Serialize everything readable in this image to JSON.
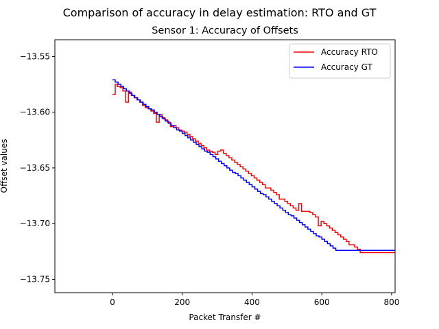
{
  "chart_data": {
    "type": "line",
    "title": "Comparison of accuracy in delay estimation: RTO and GT",
    "subtitle": "Sensor 1: Accuracy of Offsets",
    "xlabel": "Packet Transfer #",
    "ylabel": "Offset values",
    "xlim": [
      -165,
      810
    ],
    "ylim": [
      -13.762,
      -13.535
    ],
    "xticks": [
      0,
      200,
      400,
      600,
      800
    ],
    "yticks": [
      -13.55,
      -13.6,
      -13.65,
      -13.7,
      -13.75
    ],
    "ytick_labels": [
      "−13.55",
      "−13.60",
      "−13.65",
      "−13.70",
      "−13.75"
    ],
    "legend_position": "top-right",
    "grid": false,
    "series": [
      {
        "name": "Accuracy RTO",
        "color": "#ff0000",
        "step": true,
        "x": [
          0,
          8,
          14,
          22,
          30,
          38,
          46,
          54,
          62,
          70,
          78,
          86,
          94,
          102,
          110,
          118,
          126,
          134,
          142,
          150,
          158,
          166,
          174,
          182,
          190,
          198,
          206,
          214,
          222,
          230,
          238,
          246,
          254,
          262,
          270,
          278,
          286,
          294,
          302,
          310,
          318,
          326,
          334,
          342,
          350,
          358,
          366,
          374,
          382,
          390,
          398,
          406,
          414,
          422,
          430,
          438,
          446,
          454,
          462,
          470,
          478,
          486,
          494,
          502,
          510,
          518,
          526,
          534,
          542,
          550,
          558,
          566,
          574,
          582,
          590,
          598,
          606,
          614,
          622,
          630,
          638,
          646,
          654,
          662,
          670,
          678,
          686,
          694,
          702,
          710,
          718,
          726,
          734,
          742,
          750,
          758,
          766,
          774,
          782,
          790,
          798,
          806,
          810
        ],
        "y": [
          -13.584,
          -13.575,
          -13.577,
          -13.578,
          -13.581,
          -13.591,
          -13.582,
          -13.585,
          -13.587,
          -13.589,
          -13.591,
          -13.594,
          -13.596,
          -13.597,
          -13.599,
          -13.601,
          -13.609,
          -13.602,
          -13.605,
          -13.607,
          -13.609,
          -13.613,
          -13.612,
          -13.614,
          -13.616,
          -13.617,
          -13.618,
          -13.62,
          -13.622,
          -13.624,
          -13.626,
          -13.628,
          -13.63,
          -13.632,
          -13.634,
          -13.635,
          -13.636,
          -13.638,
          -13.635,
          -13.634,
          -13.637,
          -13.639,
          -13.641,
          -13.643,
          -13.645,
          -13.647,
          -13.649,
          -13.651,
          -13.653,
          -13.655,
          -13.657,
          -13.659,
          -13.661,
          -13.663,
          -13.665,
          -13.668,
          -13.668,
          -13.67,
          -13.672,
          -13.674,
          -13.678,
          -13.678,
          -13.68,
          -13.682,
          -13.684,
          -13.686,
          -13.688,
          -13.682,
          -13.689,
          -13.689,
          -13.689,
          -13.69,
          -13.692,
          -13.694,
          -13.702,
          -13.698,
          -13.7,
          -13.702,
          -13.704,
          -13.706,
          -13.708,
          -13.71,
          -13.712,
          -13.714,
          -13.716,
          -13.719,
          -13.719,
          -13.721,
          -13.723,
          -13.726,
          -13.726,
          -13.726,
          -13.726,
          -13.726,
          -13.726,
          -13.726,
          -13.726,
          -13.726,
          -13.726,
          -13.726,
          -13.726,
          -13.726,
          -13.726
        ]
      },
      {
        "name": "Accuracy GT",
        "color": "#0000ff",
        "step": true,
        "x": [
          0,
          8,
          16,
          24,
          32,
          40,
          48,
          56,
          64,
          72,
          80,
          88,
          96,
          104,
          112,
          120,
          128,
          136,
          144,
          152,
          160,
          168,
          176,
          184,
          192,
          200,
          208,
          216,
          224,
          232,
          240,
          248,
          256,
          264,
          272,
          280,
          288,
          296,
          304,
          312,
          320,
          328,
          336,
          344,
          352,
          360,
          368,
          376,
          384,
          392,
          400,
          408,
          416,
          424,
          432,
          440,
          448,
          456,
          464,
          472,
          480,
          488,
          496,
          504,
          512,
          520,
          528,
          536,
          544,
          552,
          560,
          568,
          576,
          584,
          592,
          600,
          608,
          616,
          624,
          632,
          640,
          648,
          656,
          664,
          672,
          680,
          688,
          696,
          704,
          712,
          720,
          728,
          736,
          744,
          752,
          760,
          768,
          776,
          784,
          792,
          800,
          810
        ],
        "y": [
          -13.571,
          -13.573,
          -13.575,
          -13.577,
          -13.579,
          -13.581,
          -13.583,
          -13.585,
          -13.587,
          -13.589,
          -13.591,
          -13.593,
          -13.595,
          -13.597,
          -13.598,
          -13.6,
          -13.602,
          -13.604,
          -13.606,
          -13.608,
          -13.61,
          -13.612,
          -13.614,
          -13.616,
          -13.617,
          -13.619,
          -13.621,
          -13.623,
          -13.625,
          -13.627,
          -13.629,
          -13.631,
          -13.633,
          -13.635,
          -13.636,
          -13.638,
          -13.64,
          -13.642,
          -13.644,
          -13.646,
          -13.648,
          -13.65,
          -13.652,
          -13.654,
          -13.655,
          -13.657,
          -13.659,
          -13.661,
          -13.663,
          -13.665,
          -13.667,
          -13.669,
          -13.671,
          -13.673,
          -13.674,
          -13.676,
          -13.678,
          -13.68,
          -13.682,
          -13.684,
          -13.686,
          -13.688,
          -13.69,
          -13.692,
          -13.693,
          -13.695,
          -13.697,
          -13.699,
          -13.701,
          -13.703,
          -13.705,
          -13.707,
          -13.709,
          -13.711,
          -13.712,
          -13.714,
          -13.716,
          -13.718,
          -13.72,
          -13.722,
          -13.724,
          -13.724,
          -13.724,
          -13.724,
          -13.724,
          -13.724,
          -13.724,
          -13.724,
          -13.724,
          -13.724,
          -13.724,
          -13.724,
          -13.724,
          -13.724,
          -13.724,
          -13.724,
          -13.724,
          -13.724,
          -13.724,
          -13.724,
          -13.724,
          -13.724
        ]
      }
    ]
  }
}
